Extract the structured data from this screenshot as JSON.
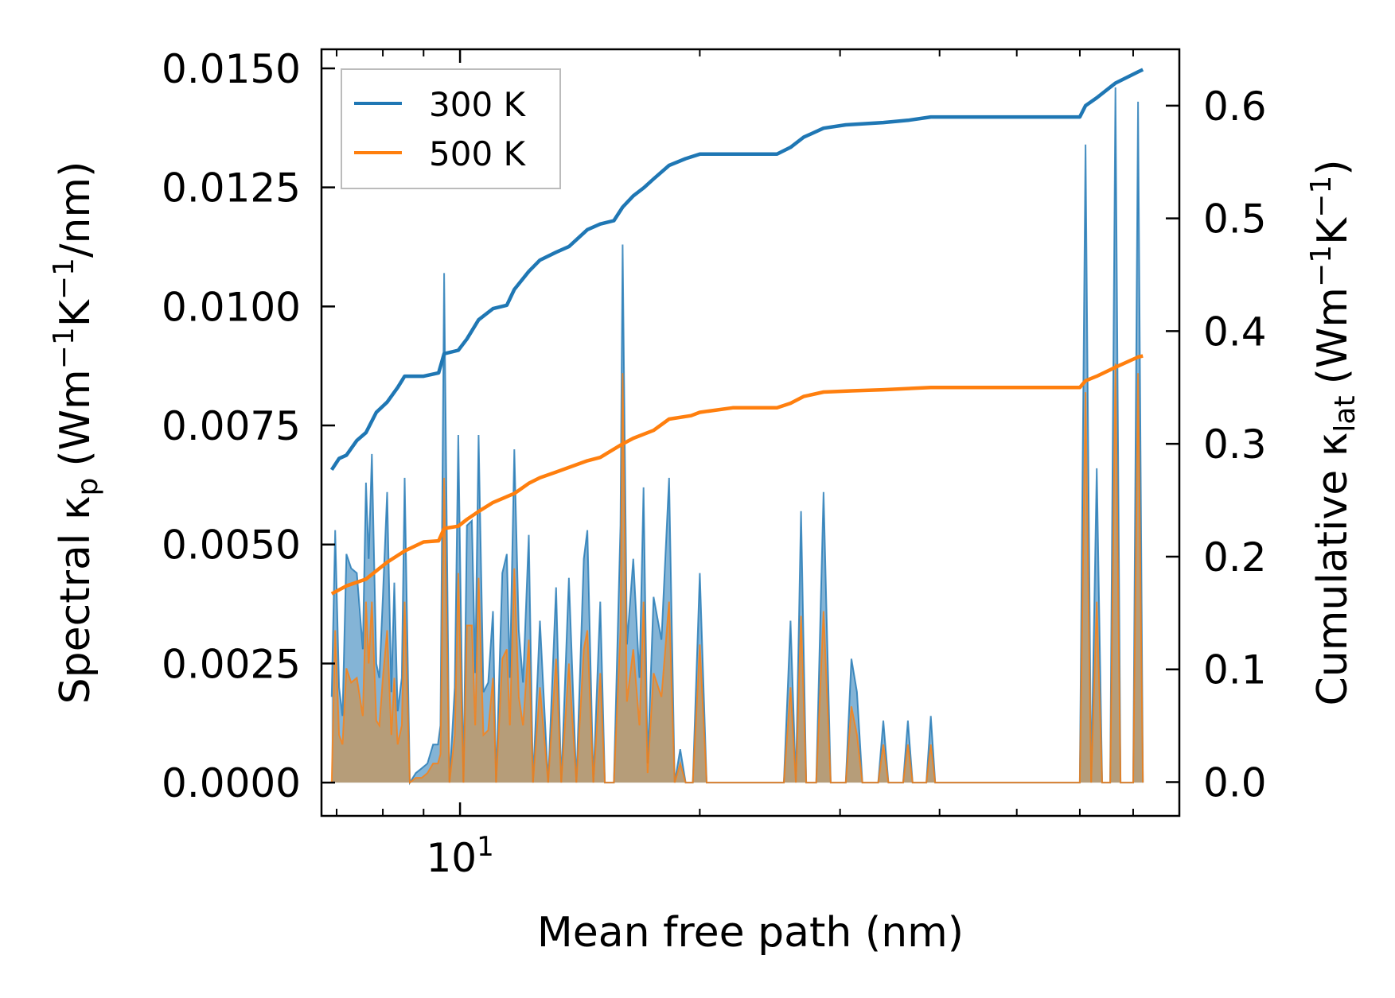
{
  "chart_data": {
    "type": "line",
    "xscale": "log",
    "xlabel": "Mean free path (nm)",
    "ylabel_left": {
      "base": "Spectral κ",
      "sub": "p",
      "units": [
        "(Wm",
        "−1",
        "K",
        "−1",
        "/nm)"
      ]
    },
    "ylabel_right": {
      "base": "Cumulative κ",
      "sub": "lat",
      "units": [
        "(Wm",
        "−1",
        "K",
        "−1",
        ")"
      ]
    },
    "xlim": [
      6.7,
      80
    ],
    "ylim_left": [
      -0.0007,
      0.0154
    ],
    "ylim_right": [
      -0.03,
      0.65
    ],
    "x_major_ticks": [
      {
        "value": 10,
        "base": "10",
        "exp": "1"
      }
    ],
    "x_minor_ticks": [
      7,
      8,
      9,
      20,
      30,
      40,
      50,
      60,
      70,
      80
    ],
    "y_left_ticks": [
      "0.0000",
      "0.0025",
      "0.0050",
      "0.0075",
      "0.0100",
      "0.0125",
      "0.0150"
    ],
    "y_right_ticks": [
      "0.0",
      "0.1",
      "0.2",
      "0.3",
      "0.4",
      "0.5",
      "0.6"
    ],
    "legend": {
      "placement": "upper-left",
      "entries": [
        {
          "label": "300 K",
          "color": "#1f77b4"
        },
        {
          "label": "500 K",
          "color": "#ff7f0e"
        }
      ]
    },
    "colors": {
      "t300": "#1f77b4",
      "t500": "#ff7f0e",
      "spectral_fill_300": "#1f77b4",
      "spectral_fill_500": "#e08a2e"
    },
    "spectral": {
      "t300": [
        [
          6.9,
          0.0018
        ],
        [
          6.97,
          0.0053
        ],
        [
          7.05,
          0.002
        ],
        [
          7.12,
          0.0014
        ],
        [
          7.2,
          0.0048
        ],
        [
          7.3,
          0.0045
        ],
        [
          7.42,
          0.0044
        ],
        [
          7.55,
          0.0028
        ],
        [
          7.62,
          0.0063
        ],
        [
          7.68,
          0.0047
        ],
        [
          7.75,
          0.0069
        ],
        [
          7.85,
          0.0025
        ],
        [
          7.92,
          0.0022
        ],
        [
          8.0,
          0.0039
        ],
        [
          8.1,
          0.0061
        ],
        [
          8.2,
          0.0019
        ],
        [
          8.27,
          0.0042
        ],
        [
          8.35,
          0.0015
        ],
        [
          8.45,
          0.0022
        ],
        [
          8.52,
          0.0064
        ],
        [
          8.65,
          0.0
        ],
        [
          8.8,
          0.0002
        ],
        [
          8.95,
          0.0003
        ],
        [
          9.1,
          0.0004
        ],
        [
          9.25,
          0.0008
        ],
        [
          9.38,
          0.0008
        ],
        [
          9.45,
          0.0012
        ],
        [
          9.55,
          0.0107
        ],
        [
          9.7,
          0.0
        ],
        [
          9.85,
          0.002
        ],
        [
          9.95,
          0.0073
        ],
        [
          10.1,
          0.0
        ],
        [
          10.2,
          0.0054
        ],
        [
          10.35,
          0.0055
        ],
        [
          10.45,
          0.0023
        ],
        [
          10.55,
          0.0073
        ],
        [
          10.7,
          0.0019
        ],
        [
          10.85,
          0.0021
        ],
        [
          11.0,
          0.0036
        ],
        [
          11.1,
          0.0
        ],
        [
          11.3,
          0.0044
        ],
        [
          11.45,
          0.0048
        ],
        [
          11.55,
          0.0022
        ],
        [
          11.7,
          0.007
        ],
        [
          11.85,
          0.0032
        ],
        [
          12.0,
          0.0021
        ],
        [
          12.2,
          0.0052
        ],
        [
          12.35,
          0.0
        ],
        [
          12.6,
          0.0034
        ],
        [
          12.9,
          0.0
        ],
        [
          13.2,
          0.0041
        ],
        [
          13.4,
          0.0
        ],
        [
          13.7,
          0.0043
        ],
        [
          14.0,
          0.0
        ],
        [
          14.3,
          0.0047
        ],
        [
          14.45,
          0.0053
        ],
        [
          14.7,
          0.0
        ],
        [
          15.0,
          0.0038
        ],
        [
          15.2,
          0.0
        ],
        [
          15.6,
          0.0
        ],
        [
          15.9,
          0.0054
        ],
        [
          16.0,
          0.0113
        ],
        [
          16.2,
          0.0029
        ],
        [
          16.5,
          0.0047
        ],
        [
          16.8,
          0.0022
        ],
        [
          17.0,
          0.0062
        ],
        [
          17.2,
          0.0004
        ],
        [
          17.5,
          0.0039
        ],
        [
          17.9,
          0.003
        ],
        [
          18.3,
          0.0064
        ],
        [
          18.6,
          0.0
        ],
        [
          18.9,
          0.0007
        ],
        [
          19.2,
          0.0
        ],
        [
          19.6,
          0.0
        ],
        [
          20.0,
          0.0044
        ],
        [
          20.4,
          0.0
        ],
        [
          21.0,
          0.0
        ],
        [
          23.0,
          0.0
        ],
        [
          25.5,
          0.0
        ],
        [
          26.0,
          0.0034
        ],
        [
          26.4,
          0.0
        ],
        [
          26.8,
          0.0057
        ],
        [
          27.2,
          0.0
        ],
        [
          28.0,
          0.0
        ],
        [
          28.6,
          0.0061
        ],
        [
          29.2,
          0.0
        ],
        [
          30.5,
          0.0
        ],
        [
          31.0,
          0.0026
        ],
        [
          31.5,
          0.0019
        ],
        [
          32.0,
          0.0
        ],
        [
          33.5,
          0.0
        ],
        [
          34.0,
          0.0013
        ],
        [
          34.5,
          0.0
        ],
        [
          36.0,
          0.0
        ],
        [
          36.5,
          0.0013
        ],
        [
          37.0,
          0.0
        ],
        [
          38.5,
          0.0
        ],
        [
          39.0,
          0.0014
        ],
        [
          39.5,
          0.0
        ],
        [
          60.0,
          0.0
        ],
        [
          61.0,
          0.0134
        ],
        [
          62.0,
          0.0
        ],
        [
          63.0,
          0.0066
        ],
        [
          64.0,
          0.0
        ],
        [
          65.5,
          0.0
        ],
        [
          66.5,
          0.0146
        ],
        [
          67.5,
          0.0
        ],
        [
          70.0,
          0.0
        ],
        [
          71.0,
          0.0143
        ],
        [
          72.0,
          0.0
        ]
      ],
      "t500": [
        [
          6.9,
          0.0
        ],
        [
          6.97,
          0.0032
        ],
        [
          7.05,
          0.001
        ],
        [
          7.12,
          0.0008
        ],
        [
          7.2,
          0.0024
        ],
        [
          7.3,
          0.0021
        ],
        [
          7.42,
          0.0022
        ],
        [
          7.55,
          0.0014
        ],
        [
          7.62,
          0.0038
        ],
        [
          7.68,
          0.0025
        ],
        [
          7.75,
          0.0038
        ],
        [
          7.85,
          0.0013
        ],
        [
          7.92,
          0.0012
        ],
        [
          8.0,
          0.0022
        ],
        [
          8.1,
          0.0032
        ],
        [
          8.2,
          0.001
        ],
        [
          8.27,
          0.0022
        ],
        [
          8.35,
          0.0008
        ],
        [
          8.45,
          0.0012
        ],
        [
          8.52,
          0.0038
        ],
        [
          8.65,
          0.0
        ],
        [
          8.8,
          0.0001
        ],
        [
          8.95,
          0.0001
        ],
        [
          9.1,
          0.0002
        ],
        [
          9.25,
          0.0004
        ],
        [
          9.38,
          0.0004
        ],
        [
          9.45,
          0.0006
        ],
        [
          9.55,
          0.0064
        ],
        [
          9.7,
          0.0
        ],
        [
          9.85,
          0.001
        ],
        [
          9.95,
          0.0044
        ],
        [
          10.1,
          0.0
        ],
        [
          10.2,
          0.0033
        ],
        [
          10.35,
          0.0033
        ],
        [
          10.45,
          0.0012
        ],
        [
          10.55,
          0.0043
        ],
        [
          10.7,
          0.001
        ],
        [
          10.85,
          0.0011
        ],
        [
          11.0,
          0.0022
        ],
        [
          11.1,
          0.0
        ],
        [
          11.3,
          0.0026
        ],
        [
          11.45,
          0.0028
        ],
        [
          11.55,
          0.0012
        ],
        [
          11.7,
          0.0045
        ],
        [
          11.85,
          0.0018
        ],
        [
          12.0,
          0.0012
        ],
        [
          12.2,
          0.003
        ],
        [
          12.35,
          0.0
        ],
        [
          12.6,
          0.002
        ],
        [
          12.9,
          0.0
        ],
        [
          13.2,
          0.0026
        ],
        [
          13.4,
          0.0
        ],
        [
          13.7,
          0.0025
        ],
        [
          14.0,
          0.0
        ],
        [
          14.3,
          0.0028
        ],
        [
          14.45,
          0.0032
        ],
        [
          14.7,
          0.0
        ],
        [
          15.0,
          0.0023
        ],
        [
          15.2,
          0.0
        ],
        [
          15.6,
          0.0
        ],
        [
          15.9,
          0.0032
        ],
        [
          16.0,
          0.0086
        ],
        [
          16.2,
          0.0017
        ],
        [
          16.5,
          0.0028
        ],
        [
          16.8,
          0.0012
        ],
        [
          17.0,
          0.0038
        ],
        [
          17.2,
          0.0002
        ],
        [
          17.5,
          0.0023
        ],
        [
          17.9,
          0.0018
        ],
        [
          18.3,
          0.0038
        ],
        [
          18.6,
          0.0
        ],
        [
          18.9,
          0.0004
        ],
        [
          19.2,
          0.0
        ],
        [
          19.6,
          0.0
        ],
        [
          20.0,
          0.0029
        ],
        [
          20.4,
          0.0
        ],
        [
          21.0,
          0.0
        ],
        [
          23.0,
          0.0
        ],
        [
          25.5,
          0.0
        ],
        [
          26.0,
          0.002
        ],
        [
          26.4,
          0.0
        ],
        [
          26.8,
          0.0035
        ],
        [
          27.2,
          0.0
        ],
        [
          28.0,
          0.0
        ],
        [
          28.6,
          0.0036
        ],
        [
          29.2,
          0.0
        ],
        [
          30.5,
          0.0
        ],
        [
          31.0,
          0.0016
        ],
        [
          31.5,
          0.001
        ],
        [
          32.0,
          0.0
        ],
        [
          33.5,
          0.0
        ],
        [
          34.0,
          0.0008
        ],
        [
          34.5,
          0.0
        ],
        [
          36.0,
          0.0
        ],
        [
          36.5,
          0.0008
        ],
        [
          37.0,
          0.0
        ],
        [
          38.5,
          0.0
        ],
        [
          39.0,
          0.0008
        ],
        [
          39.5,
          0.0
        ],
        [
          60.0,
          0.0
        ],
        [
          61.0,
          0.0082
        ],
        [
          62.0,
          0.0
        ],
        [
          63.0,
          0.0038
        ],
        [
          64.0,
          0.0
        ],
        [
          65.5,
          0.0
        ],
        [
          66.5,
          0.0088
        ],
        [
          67.5,
          0.0
        ],
        [
          70.0,
          0.0
        ],
        [
          71.0,
          0.0086
        ],
        [
          72.0,
          0.0
        ]
      ]
    },
    "cumulative": {
      "t300": [
        [
          6.9,
          0.277
        ],
        [
          7.05,
          0.287
        ],
        [
          7.2,
          0.29
        ],
        [
          7.42,
          0.303
        ],
        [
          7.62,
          0.31
        ],
        [
          7.85,
          0.328
        ],
        [
          8.1,
          0.337
        ],
        [
          8.35,
          0.35
        ],
        [
          8.52,
          0.36
        ],
        [
          9.0,
          0.36
        ],
        [
          9.4,
          0.363
        ],
        [
          9.55,
          0.38
        ],
        [
          9.95,
          0.383
        ],
        [
          10.2,
          0.393
        ],
        [
          10.55,
          0.41
        ],
        [
          11.0,
          0.42
        ],
        [
          11.45,
          0.423
        ],
        [
          11.7,
          0.437
        ],
        [
          12.2,
          0.453
        ],
        [
          12.6,
          0.463
        ],
        [
          13.2,
          0.47
        ],
        [
          13.7,
          0.475
        ],
        [
          14.45,
          0.49
        ],
        [
          15.0,
          0.495
        ],
        [
          15.6,
          0.498
        ],
        [
          16.0,
          0.51
        ],
        [
          16.5,
          0.52
        ],
        [
          17.0,
          0.527
        ],
        [
          17.5,
          0.535
        ],
        [
          18.3,
          0.547
        ],
        [
          19.2,
          0.553
        ],
        [
          20.0,
          0.557
        ],
        [
          22.0,
          0.557
        ],
        [
          25.0,
          0.557
        ],
        [
          26.0,
          0.563
        ],
        [
          27.0,
          0.572
        ],
        [
          28.6,
          0.58
        ],
        [
          30.5,
          0.583
        ],
        [
          34.0,
          0.585
        ],
        [
          36.5,
          0.587
        ],
        [
          39.0,
          0.59
        ],
        [
          45.0,
          0.59
        ],
        [
          60.0,
          0.59
        ],
        [
          61.0,
          0.6
        ],
        [
          63.0,
          0.607
        ],
        [
          66.5,
          0.62
        ],
        [
          71.0,
          0.63
        ],
        [
          72.0,
          0.632
        ]
      ],
      "t500": [
        [
          6.9,
          0.167
        ],
        [
          7.2,
          0.174
        ],
        [
          7.62,
          0.18
        ],
        [
          8.1,
          0.195
        ],
        [
          8.52,
          0.205
        ],
        [
          9.0,
          0.213
        ],
        [
          9.4,
          0.214
        ],
        [
          9.55,
          0.225
        ],
        [
          9.95,
          0.227
        ],
        [
          10.2,
          0.233
        ],
        [
          10.55,
          0.24
        ],
        [
          11.0,
          0.248
        ],
        [
          11.7,
          0.256
        ],
        [
          12.2,
          0.265
        ],
        [
          12.6,
          0.27
        ],
        [
          13.2,
          0.275
        ],
        [
          14.45,
          0.285
        ],
        [
          15.0,
          0.288
        ],
        [
          16.0,
          0.3
        ],
        [
          16.5,
          0.305
        ],
        [
          17.5,
          0.312
        ],
        [
          18.3,
          0.322
        ],
        [
          19.5,
          0.325
        ],
        [
          20.0,
          0.328
        ],
        [
          22.0,
          0.332
        ],
        [
          25.0,
          0.332
        ],
        [
          26.0,
          0.336
        ],
        [
          27.0,
          0.342
        ],
        [
          28.6,
          0.346
        ],
        [
          31.0,
          0.347
        ],
        [
          34.0,
          0.348
        ],
        [
          39.0,
          0.35
        ],
        [
          45.0,
          0.35
        ],
        [
          60.0,
          0.35
        ],
        [
          61.0,
          0.356
        ],
        [
          63.0,
          0.36
        ],
        [
          66.5,
          0.368
        ],
        [
          71.0,
          0.377
        ],
        [
          72.0,
          0.378
        ]
      ]
    }
  }
}
